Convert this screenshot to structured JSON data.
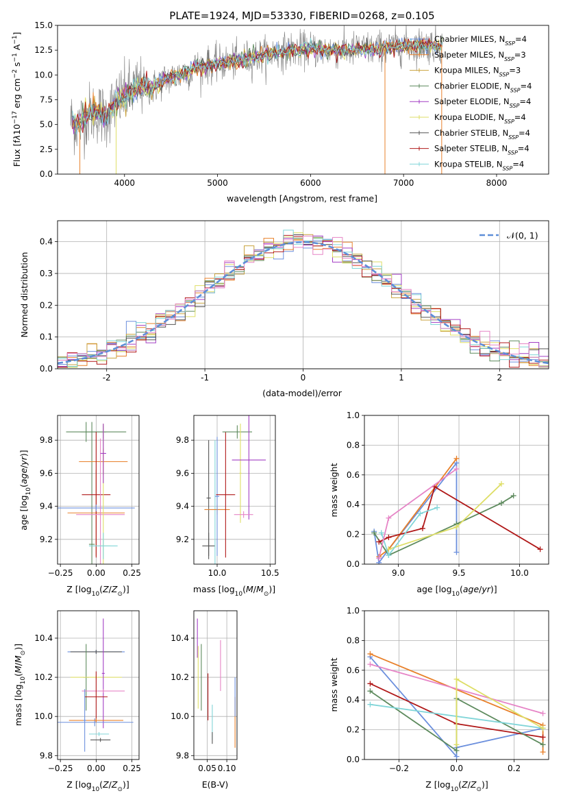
{
  "chart_data": [
    {
      "id": "spectrum",
      "type": "line",
      "title": "PLATE=1924, MJD=53330, FIBERID=0268, z=0.105",
      "xlabel": "wavelength [Angstrom, rest frame]",
      "ylabel": "Flux [f_λ 10^{-17} erg cm^{-2} s^{-1} A^{-1}]",
      "xlim": [
        3280,
        8560
      ],
      "ylim": [
        0,
        15
      ],
      "xticks": [
        4000,
        5000,
        6000,
        7000,
        8000
      ],
      "yticks": [
        0.0,
        2.5,
        5.0,
        7.5,
        10.0,
        12.5,
        15.0
      ],
      "grid": false,
      "legend_position": "right",
      "data_envelope": {
        "x": [
          3420,
          3500,
          3600,
          3700,
          3800,
          3900,
          4000,
          4100,
          4200,
          4300,
          4400,
          4600,
          4800,
          5000,
          5200,
          5400,
          5600,
          5800,
          6000,
          6200,
          6400,
          6600,
          6800,
          7000,
          7200,
          7400
        ],
        "y": [
          5.4,
          5.0,
          6.0,
          6.3,
          5.8,
          7.2,
          7.9,
          8.5,
          8.9,
          8.6,
          9.4,
          10.0,
          10.8,
          11.1,
          11.4,
          11.8,
          12.2,
          12.5,
          12.6,
          12.5,
          12.5,
          12.6,
          12.7,
          12.9,
          13.0,
          13.0
        ]
      },
      "series": [
        {
          "name": "Chabrier MILES, N_SSP=4",
          "color": "#6b8fdd"
        },
        {
          "name": "Salpeter MILES, N_SSP=3",
          "color": "#e8802a"
        },
        {
          "name": "Kroupa MILES, N_SSP=3",
          "color": "#c9a23c"
        },
        {
          "name": "Chabrier ELODIE, N_SSP=4",
          "color": "#5d8a5d"
        },
        {
          "name": "Salpeter ELODIE, N_SSP=4",
          "color": "#a23dc4"
        },
        {
          "name": "Kroupa ELODIE, N_SSP=4",
          "color": "#dede66"
        },
        {
          "name": "Chabrier STELIB, N_SSP=4",
          "color": "#555555"
        },
        {
          "name": "Salpeter STELIB, N_SSP=4",
          "color": "#b01818"
        },
        {
          "name": "Kroupa STELIB, N_SSP=4",
          "color": "#80d5d8"
        }
      ],
      "data_color": "#7a7a7a"
    },
    {
      "id": "residuals",
      "type": "line",
      "xlabel": "(data-model)/error",
      "ylabel": "Normed distribution",
      "xlim": [
        -2.5,
        2.5
      ],
      "ylim": [
        0,
        0.466
      ],
      "xticks": [
        -2,
        -1,
        0,
        1,
        2
      ],
      "yticks": [
        0.0,
        0.1,
        0.2,
        0.3,
        0.4
      ],
      "grid": true,
      "legend": "𝒩(0, 1)",
      "legend_position": "top-right",
      "gaussian_color": "#5d8ed8",
      "bin_width": 0.1,
      "hist_colors": [
        "#6b8fdd",
        "#e8802a",
        "#c9a23c",
        "#5d8a5d",
        "#a23dc4",
        "#dede66",
        "#555555",
        "#b01818",
        "#80d5d8",
        "#e684c6"
      ]
    },
    {
      "id": "z_age",
      "type": "scatter",
      "xlabel": "Z [log10(Z/Z☉)]",
      "ylabel": "age [log10(age/yr)]",
      "xlim": [
        -0.27,
        0.3
      ],
      "ylim": [
        9.05,
        9.95
      ],
      "xticks": [
        -0.25,
        0.0,
        0.25
      ],
      "xticklabels": [
        "−0.25",
        "0.00",
        "0.25"
      ],
      "yticks": [
        9.2,
        9.4,
        9.6,
        9.8
      ],
      "grid": true,
      "points": [
        {
          "x": -0.07,
          "y": 9.85,
          "xerr": 0.14,
          "yerr": 0.06,
          "color": "#5d8a5d"
        },
        {
          "x": -0.03,
          "y": 9.17,
          "xerr": 0.02,
          "yerr": 0.74,
          "color": "#5d8a5d"
        },
        {
          "x": 0.05,
          "y": 9.85,
          "xerr": 0.16,
          "yerr": 0.04,
          "color": "#5d8a5d"
        },
        {
          "x": 0.05,
          "y": 9.67,
          "xerr": 0.17,
          "yerr": 0.08,
          "color": "#e8802a"
        },
        {
          "x": 0.0,
          "y": 9.36,
          "xerr": 0.2,
          "yerr": 0.26,
          "color": "#e8802a"
        },
        {
          "x": 0.0,
          "y": 9.47,
          "xerr": 0.1,
          "yerr": 0.38,
          "color": "#b01818"
        },
        {
          "x": 0.0,
          "y": 9.39,
          "xerr": 0.27,
          "yerr": 0.02,
          "color": "#6b8fdd"
        },
        {
          "x": 0.03,
          "y": 9.35,
          "xerr": 0.17,
          "yerr": 0.46,
          "color": "#e684c6"
        },
        {
          "x": 0.05,
          "y": 9.16,
          "xerr": 0.05,
          "yerr": 0.74,
          "color": "#dede66"
        },
        {
          "x": 0.05,
          "y": 9.16,
          "xerr": 0.1,
          "yerr": 0.08,
          "color": "#80d5d8"
        },
        {
          "x": 0.05,
          "y": 9.72,
          "xerr": 0.02,
          "yerr": 0.18,
          "color": "#a23dc4"
        }
      ]
    },
    {
      "id": "mass_age",
      "type": "scatter",
      "xlabel": "mass [log10(M/M☉)]",
      "ylabel": "",
      "xlim": [
        9.78,
        10.55
      ],
      "ylim": [
        9.05,
        9.95
      ],
      "xticks": [
        10.0,
        10.5
      ],
      "yticks": [
        9.2,
        9.4,
        9.6,
        9.8
      ],
      "grid": true,
      "points": [
        {
          "x": 9.92,
          "y": 9.45,
          "xerr": 0.02,
          "yerr": 0.35,
          "color": "#555555"
        },
        {
          "x": 9.92,
          "y": 9.16,
          "xerr": 0.06,
          "yerr": 0.08,
          "color": "#555555"
        },
        {
          "x": 9.98,
          "y": 9.38,
          "xerr": 0.1,
          "yerr": 0.42,
          "color": "#80d5d8"
        },
        {
          "x": 10.0,
          "y": 9.38,
          "xerr": 0.12,
          "yerr": 0.03,
          "color": "#e8802a"
        },
        {
          "x": 10.0,
          "y": 9.46,
          "xerr": 0.02,
          "yerr": 0.36,
          "color": "#6b8fdd"
        },
        {
          "x": 10.08,
          "y": 9.47,
          "xerr": 0.09,
          "yerr": 0.38,
          "color": "#b01818"
        },
        {
          "x": 10.19,
          "y": 9.85,
          "xerr": 0.14,
          "yerr": 0.04,
          "color": "#5d8a5d"
        },
        {
          "x": 10.22,
          "y": 9.6,
          "xerr": 0.01,
          "yerr": 0.3,
          "color": "#dede66"
        },
        {
          "x": 10.3,
          "y": 9.68,
          "xerr": 0.16,
          "yerr": 0.36,
          "color": "#a23dc4"
        },
        {
          "x": 10.25,
          "y": 9.35,
          "xerr": 0.09,
          "yerr": 0.02,
          "color": "#e684c6"
        }
      ]
    },
    {
      "id": "weights_age",
      "type": "line",
      "xlabel": "age [log10(age/yr)]",
      "ylabel": "mass weight",
      "xlim": [
        8.72,
        10.24
      ],
      "ylim": [
        0,
        1
      ],
      "xticks": [
        9.0,
        9.5,
        10.0
      ],
      "yticks": [
        0.0,
        0.2,
        0.4,
        0.6,
        0.8,
        1.0
      ],
      "grid": true,
      "series": [
        {
          "color": "#6b8fdd",
          "x": [
            8.8,
            8.84,
            8.92,
            9.48,
            9.48
          ],
          "y": [
            0.22,
            0.01,
            0.1,
            0.68,
            0.08
          ]
        },
        {
          "color": "#e8802a",
          "x": [
            8.84,
            8.92,
            9.48
          ],
          "y": [
            0.05,
            0.1,
            0.71
          ]
        },
        {
          "color": "#5d8a5d",
          "x": [
            8.8,
            8.92,
            9.48,
            9.85,
            9.95
          ],
          "y": [
            0.21,
            0.06,
            0.27,
            0.41,
            0.46
          ]
        },
        {
          "color": "#b01818",
          "x": [
            8.84,
            8.92,
            9.2,
            9.3,
            10.17
          ],
          "y": [
            0.15,
            0.18,
            0.24,
            0.52,
            0.1
          ]
        },
        {
          "color": "#dede66",
          "x": [
            8.92,
            9.48,
            9.85
          ],
          "y": [
            0.1,
            0.25,
            0.54
          ]
        },
        {
          "color": "#80d5d8",
          "x": [
            8.86,
            8.92,
            9.18,
            9.32
          ],
          "y": [
            0.21,
            0.06,
            0.34,
            0.38
          ]
        },
        {
          "color": "#e684c6",
          "x": [
            8.84,
            8.92,
            9.48
          ],
          "y": [
            0.04,
            0.31,
            0.64
          ]
        }
      ]
    },
    {
      "id": "z_mass",
      "type": "scatter",
      "xlabel": "Z [log10(Z/Z☉)]",
      "ylabel": "mass [log10(M/M☉)]",
      "xlim": [
        -0.27,
        0.3
      ],
      "ylim": [
        9.78,
        10.54
      ],
      "xticks": [
        -0.25,
        0.0,
        0.25
      ],
      "xticklabels": [
        "−0.25",
        "0.00",
        "0.25"
      ],
      "yticks": [
        9.8,
        10.0,
        10.2,
        10.4
      ],
      "grid": true,
      "points": [
        {
          "x": 0.0,
          "y": 10.33,
          "xerr": 0.2,
          "yerr": 0.01,
          "color": "#6b8fdd"
        },
        {
          "x": 0.0,
          "y": 10.33,
          "xerr": 0.18,
          "yerr": 0.01,
          "color": "#555555"
        },
        {
          "x": -0.07,
          "y": 10.2,
          "xerr": 0.02,
          "yerr": 0.17,
          "color": "#5d8a5d"
        },
        {
          "x": 0.0,
          "y": 10.2,
          "xerr": 0.18,
          "yerr": 0.01,
          "color": "#dede66"
        },
        {
          "x": 0.05,
          "y": 10.22,
          "xerr": 0.01,
          "yerr": 0.28,
          "color": "#a23dc4"
        },
        {
          "x": 0.05,
          "y": 10.13,
          "xerr": 0.15,
          "yerr": 0.01,
          "color": "#e684c6"
        },
        {
          "x": 0.0,
          "y": 10.1,
          "xerr": 0.08,
          "yerr": 0.13,
          "color": "#b01818"
        },
        {
          "x": -0.01,
          "y": 9.97,
          "xerr": 0.27,
          "yerr": 0.02,
          "color": "#6b8fdd"
        },
        {
          "x": 0.0,
          "y": 9.98,
          "xerr": 0.19,
          "yerr": 0.01,
          "color": "#e8802a"
        },
        {
          "x": 0.02,
          "y": 9.91,
          "xerr": 0.07,
          "yerr": 0.01,
          "color": "#80d5d8"
        },
        {
          "x": 0.03,
          "y": 9.88,
          "xerr": 0.07,
          "yerr": 0.01,
          "color": "#555555"
        },
        {
          "x": -0.08,
          "y": 9.98,
          "xerr": 0.01,
          "yerr": 0.16,
          "color": "#6b8fdd"
        }
      ]
    },
    {
      "id": "ebv_mass",
      "type": "scatter",
      "xlabel": "E(B-V)",
      "ylabel": "",
      "xlim": [
        0.016,
        0.126
      ],
      "ylim": [
        9.78,
        10.54
      ],
      "xticks": [
        0.05,
        0.1
      ],
      "yticks": [
        9.8,
        10.0,
        10.2,
        10.4
      ],
      "grid": true,
      "points": [
        {
          "x": 0.025,
          "y": 10.4,
          "yerr": 0.1,
          "color": "#a23dc4"
        },
        {
          "x": 0.027,
          "y": 10.2,
          "yerr": 0.16,
          "color": "#dede66"
        },
        {
          "x": 0.035,
          "y": 10.2,
          "yerr": 0.17,
          "color": "#5d8a5d"
        },
        {
          "x": 0.052,
          "y": 10.1,
          "yerr": 0.12,
          "color": "#b01818"
        },
        {
          "x": 0.063,
          "y": 9.97,
          "yerr": 0.09,
          "color": "#80d5d8"
        },
        {
          "x": 0.063,
          "y": 9.89,
          "yerr": 0.03,
          "color": "#555555"
        },
        {
          "x": 0.084,
          "y": 10.26,
          "yerr": 0.13,
          "color": "#e684c6"
        },
        {
          "x": 0.121,
          "y": 9.97,
          "yerr": 0.13,
          "color": "#e8802a"
        },
        {
          "x": 0.121,
          "y": 10.1,
          "yerr": 0.1,
          "color": "#6b8fdd"
        }
      ]
    },
    {
      "id": "weights_z",
      "type": "line",
      "xlabel": "Z [log10(Z/Z☉)]",
      "ylabel": "mass weight",
      "xlim": [
        -0.32,
        0.32
      ],
      "ylim": [
        0,
        1
      ],
      "xticks": [
        -0.2,
        0.0,
        0.2
      ],
      "xticklabels": [
        "−0.2",
        "0.0",
        "0.2"
      ],
      "yticks": [
        0.0,
        0.2,
        0.4,
        0.6,
        0.8,
        1.0
      ],
      "grid": true,
      "series": [
        {
          "color": "#6b8fdd",
          "x": [
            -0.3,
            0.0,
            0.0,
            0.3
          ],
          "y": [
            0.69,
            0.02,
            0.08,
            0.21
          ]
        },
        {
          "color": "#e8802a",
          "x": [
            -0.3,
            0.3,
            0.3
          ],
          "y": [
            0.71,
            0.23,
            0.05
          ]
        },
        {
          "color": "#e684c6",
          "x": [
            -0.3,
            0.3
          ],
          "y": [
            0.64,
            0.31
          ]
        },
        {
          "color": "#b01818",
          "x": [
            -0.3,
            0.0,
            0.3
          ],
          "y": [
            0.51,
            0.24,
            0.15
          ]
        },
        {
          "color": "#5d8a5d",
          "x": [
            -0.3,
            0.0,
            0.0,
            0.3
          ],
          "y": [
            0.46,
            0.06,
            0.41,
            0.1
          ]
        },
        {
          "color": "#80d5d8",
          "x": [
            -0.3,
            0.3
          ],
          "y": [
            0.37,
            0.21
          ]
        },
        {
          "color": "#dede66",
          "x": [
            0.0,
            0.0,
            0.3
          ],
          "y": [
            0.1,
            0.54,
            0.21
          ]
        }
      ]
    }
  ]
}
